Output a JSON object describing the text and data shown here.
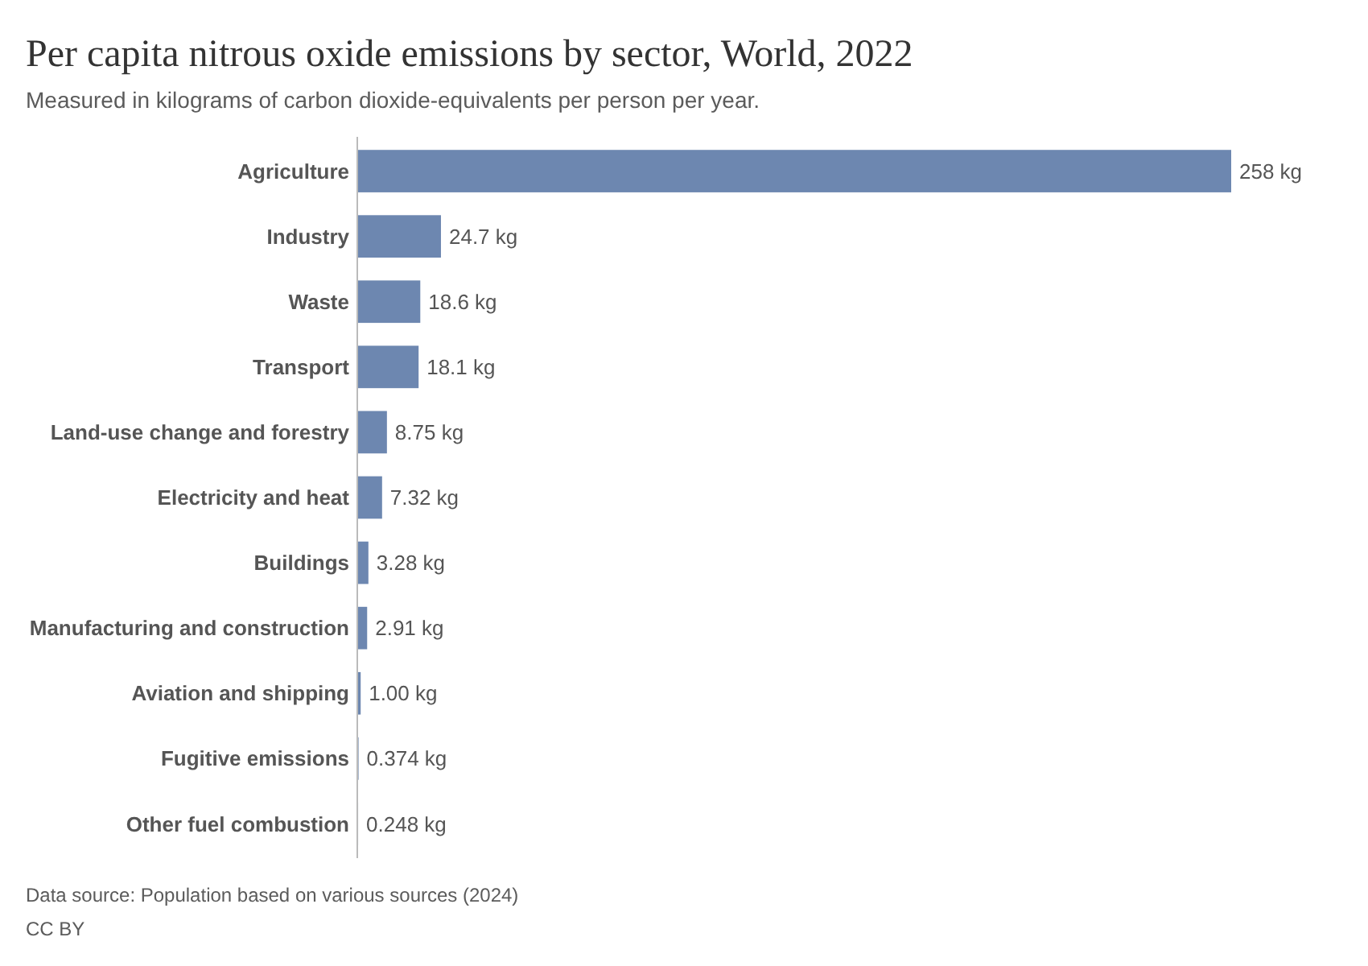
{
  "chart_data": {
    "type": "bar",
    "orientation": "horizontal",
    "title": "Per capita nitrous oxide emissions by sector, World, 2022",
    "subtitle": "Measured in kilograms of carbon dioxide-equivalents per person per year.",
    "categories": [
      "Agriculture",
      "Industry",
      "Waste",
      "Transport",
      "Land-use change and forestry",
      "Electricity and heat",
      "Buildings",
      "Manufacturing and construction",
      "Aviation and shipping",
      "Fugitive emissions",
      "Other fuel combustion"
    ],
    "values": [
      258,
      24.7,
      18.6,
      18.1,
      8.75,
      7.32,
      3.28,
      2.91,
      1.0,
      0.374,
      0.248
    ],
    "value_labels": [
      "258 kg",
      "24.7 kg",
      "18.6 kg",
      "18.1 kg",
      "8.75 kg",
      "7.32 kg",
      "3.28 kg",
      "2.91 kg",
      "1.00 kg",
      "0.374 kg",
      "0.248 kg"
    ],
    "color": "#6d87b0",
    "annotations": [
      "Data source: Population based on various sources (2024)",
      "CC BY"
    ]
  }
}
